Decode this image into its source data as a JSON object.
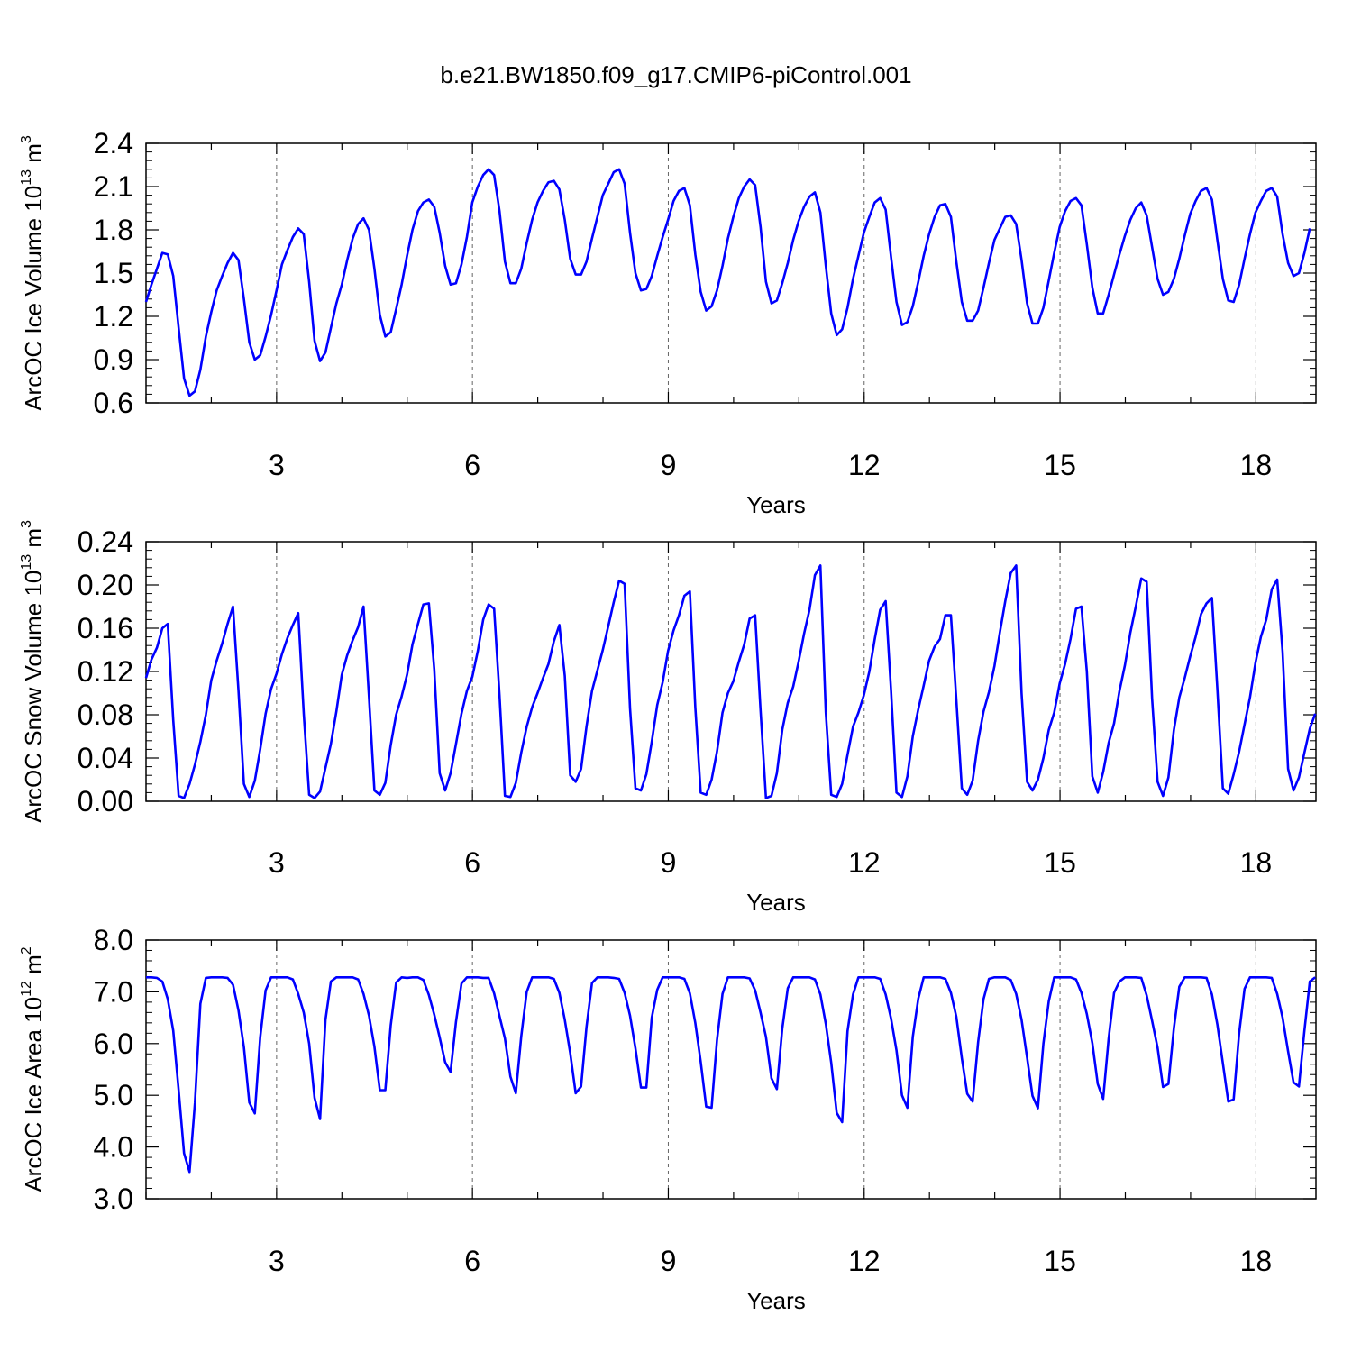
{
  "title": "b.e21.BW1850.f09_g17.CMIP6-piControl.001",
  "line_color": "#0000ff",
  "chart_data": [
    {
      "type": "line",
      "xlabel": "Years",
      "ylabel": {
        "pre": "ArcOC Ice Volume 10",
        "exp": "13",
        "mid": " m",
        "unit_exp": "3"
      },
      "xlim": [
        1.0,
        18.92
      ],
      "ylim": [
        0.6,
        2.4
      ],
      "xticks": [
        3,
        6,
        9,
        12,
        15,
        18
      ],
      "yticks": [
        "0.6",
        "0.9",
        "1.2",
        "1.5",
        "1.8",
        "2.1",
        "2.4"
      ],
      "series": [
        {
          "x_start": 1.0,
          "x_step": 0.0833,
          "values": [
            1.3,
            1.42,
            1.53,
            1.64,
            1.63,
            1.48,
            1.12,
            0.77,
            0.65,
            0.68,
            0.83,
            1.06,
            1.23,
            1.38,
            1.48,
            1.57,
            1.64,
            1.59,
            1.32,
            1.02,
            0.9,
            0.93,
            1.06,
            1.21,
            1.38,
            1.56,
            1.66,
            1.75,
            1.81,
            1.77,
            1.44,
            1.03,
            0.89,
            0.95,
            1.12,
            1.29,
            1.42,
            1.59,
            1.74,
            1.84,
            1.88,
            1.8,
            1.53,
            1.21,
            1.06,
            1.09,
            1.25,
            1.42,
            1.62,
            1.8,
            1.93,
            1.99,
            2.01,
            1.96,
            1.78,
            1.55,
            1.42,
            1.43,
            1.56,
            1.75,
            1.99,
            2.1,
            2.18,
            2.22,
            2.18,
            1.93,
            1.58,
            1.43,
            1.43,
            1.53,
            1.71,
            1.87,
            1.99,
            2.07,
            2.13,
            2.14,
            2.08,
            1.87,
            1.6,
            1.49,
            1.49,
            1.58,
            1.74,
            1.89,
            2.04,
            2.12,
            2.2,
            2.22,
            2.12,
            1.78,
            1.5,
            1.38,
            1.39,
            1.48,
            1.62,
            1.75,
            1.87,
            2.0,
            2.07,
            2.09,
            1.97,
            1.63,
            1.37,
            1.24,
            1.27,
            1.38,
            1.55,
            1.74,
            1.89,
            2.02,
            2.1,
            2.15,
            2.11,
            1.82,
            1.44,
            1.29,
            1.31,
            1.43,
            1.57,
            1.73,
            1.86,
            1.96,
            2.03,
            2.06,
            1.92,
            1.55,
            1.22,
            1.07,
            1.11,
            1.26,
            1.46,
            1.62,
            1.78,
            1.89,
            1.99,
            2.02,
            1.94,
            1.61,
            1.3,
            1.14,
            1.16,
            1.27,
            1.44,
            1.62,
            1.77,
            1.89,
            1.97,
            1.98,
            1.89,
            1.58,
            1.3,
            1.17,
            1.17,
            1.24,
            1.4,
            1.57,
            1.73,
            1.81,
            1.89,
            1.9,
            1.84,
            1.59,
            1.29,
            1.15,
            1.15,
            1.26,
            1.45,
            1.64,
            1.82,
            1.93,
            2.0,
            2.02,
            1.97,
            1.7,
            1.4,
            1.22,
            1.22,
            1.35,
            1.49,
            1.63,
            1.76,
            1.87,
            1.95,
            1.99,
            1.9,
            1.68,
            1.46,
            1.35,
            1.37,
            1.46,
            1.6,
            1.76,
            1.91,
            2.0,
            2.07,
            2.09,
            2.01,
            1.73,
            1.46,
            1.31,
            1.3,
            1.42,
            1.6,
            1.77,
            1.92,
            2.0,
            2.07,
            2.09,
            2.03,
            1.77,
            1.57,
            1.48,
            1.5,
            1.64,
            1.81
          ]
        }
      ]
    },
    {
      "type": "line",
      "xlabel": "Years",
      "ylabel": {
        "pre": "ArcOC Snow Volume 10",
        "exp": "13",
        "mid": " m",
        "unit_exp": "3"
      },
      "xlim": [
        1.0,
        18.92
      ],
      "ylim": [
        0.0,
        0.24
      ],
      "xticks": [
        3,
        6,
        9,
        12,
        15,
        18
      ],
      "yticks": [
        "0.00",
        "0.04",
        "0.08",
        "0.12",
        "0.16",
        "0.20",
        "0.24"
      ],
      "series": [
        {
          "x_start": 1.0,
          "x_step": 0.0833,
          "values": [
            0.114,
            0.131,
            0.142,
            0.16,
            0.164,
            0.075,
            0.005,
            0.003,
            0.016,
            0.034,
            0.055,
            0.08,
            0.112,
            0.13,
            0.146,
            0.164,
            0.18,
            0.102,
            0.016,
            0.004,
            0.019,
            0.048,
            0.081,
            0.104,
            0.118,
            0.136,
            0.151,
            0.163,
            0.174,
            0.081,
            0.006,
            0.003,
            0.009,
            0.031,
            0.053,
            0.083,
            0.117,
            0.135,
            0.149,
            0.161,
            0.18,
            0.096,
            0.01,
            0.006,
            0.017,
            0.052,
            0.08,
            0.097,
            0.117,
            0.145,
            0.164,
            0.182,
            0.183,
            0.122,
            0.026,
            0.01,
            0.026,
            0.053,
            0.081,
            0.102,
            0.115,
            0.139,
            0.168,
            0.182,
            0.178,
            0.098,
            0.005,
            0.004,
            0.017,
            0.045,
            0.069,
            0.087,
            0.1,
            0.114,
            0.127,
            0.148,
            0.163,
            0.116,
            0.024,
            0.018,
            0.03,
            0.069,
            0.102,
            0.121,
            0.14,
            0.162,
            0.184,
            0.204,
            0.201,
            0.086,
            0.012,
            0.01,
            0.025,
            0.055,
            0.089,
            0.11,
            0.139,
            0.158,
            0.172,
            0.19,
            0.194,
            0.087,
            0.008,
            0.006,
            0.02,
            0.046,
            0.082,
            0.1,
            0.111,
            0.129,
            0.145,
            0.169,
            0.172,
            0.084,
            0.003,
            0.005,
            0.026,
            0.066,
            0.091,
            0.106,
            0.129,
            0.155,
            0.177,
            0.209,
            0.218,
            0.082,
            0.006,
            0.004,
            0.016,
            0.043,
            0.069,
            0.082,
            0.098,
            0.12,
            0.15,
            0.177,
            0.185,
            0.102,
            0.008,
            0.004,
            0.023,
            0.06,
            0.085,
            0.107,
            0.13,
            0.143,
            0.15,
            0.172,
            0.172,
            0.094,
            0.012,
            0.006,
            0.019,
            0.056,
            0.083,
            0.101,
            0.125,
            0.156,
            0.185,
            0.211,
            0.218,
            0.1,
            0.018,
            0.01,
            0.02,
            0.04,
            0.066,
            0.082,
            0.109,
            0.127,
            0.15,
            0.178,
            0.18,
            0.12,
            0.023,
            0.008,
            0.027,
            0.054,
            0.072,
            0.102,
            0.126,
            0.156,
            0.18,
            0.206,
            0.203,
            0.095,
            0.018,
            0.005,
            0.022,
            0.066,
            0.096,
            0.114,
            0.134,
            0.152,
            0.173,
            0.183,
            0.188,
            0.104,
            0.012,
            0.007,
            0.025,
            0.046,
            0.071,
            0.096,
            0.128,
            0.152,
            0.168,
            0.196,
            0.205,
            0.138,
            0.03,
            0.01,
            0.022,
            0.045,
            0.067,
            0.081
          ]
        }
      ]
    },
    {
      "type": "line",
      "xlabel": "Years",
      "ylabel": {
        "pre": "ArcOC Ice Area 10",
        "exp": "12",
        "mid": " m",
        "unit_exp": "2"
      },
      "xlim": [
        1.0,
        18.92
      ],
      "ylim": [
        3.0,
        8.0
      ],
      "xticks": [
        3,
        6,
        9,
        12,
        15,
        18
      ],
      "yticks": [
        "3.0",
        "4.0",
        "5.0",
        "6.0",
        "7.0",
        "8.0"
      ],
      "series": [
        {
          "x_start": 1.0,
          "x_step": 0.0833,
          "values": [
            7.28,
            7.28,
            7.27,
            7.2,
            6.86,
            6.25,
            5.1,
            3.88,
            3.52,
            4.86,
            6.77,
            7.27,
            7.28,
            7.28,
            7.28,
            7.27,
            7.14,
            6.64,
            5.93,
            4.86,
            4.65,
            6.12,
            7.03,
            7.28,
            7.28,
            7.28,
            7.28,
            7.24,
            6.96,
            6.6,
            6.0,
            4.95,
            4.54,
            6.46,
            7.2,
            7.28,
            7.28,
            7.28,
            7.28,
            7.24,
            6.96,
            6.54,
            5.94,
            5.1,
            5.1,
            6.35,
            7.18,
            7.28,
            7.27,
            7.28,
            7.28,
            7.23,
            6.94,
            6.56,
            6.12,
            5.64,
            5.45,
            6.42,
            7.16,
            7.28,
            7.28,
            7.28,
            7.27,
            7.27,
            6.97,
            6.53,
            6.1,
            5.36,
            5.04,
            6.14,
            7.0,
            7.28,
            7.28,
            7.28,
            7.28,
            7.25,
            6.98,
            6.46,
            5.82,
            5.04,
            5.17,
            6.32,
            7.17,
            7.28,
            7.28,
            7.28,
            7.27,
            7.25,
            6.98,
            6.54,
            5.91,
            5.15,
            5.15,
            6.5,
            7.04,
            7.28,
            7.28,
            7.28,
            7.28,
            7.25,
            6.97,
            6.4,
            5.65,
            4.78,
            4.76,
            6.07,
            6.96,
            7.28,
            7.28,
            7.28,
            7.28,
            7.26,
            7.03,
            6.6,
            6.13,
            5.33,
            5.12,
            6.29,
            7.07,
            7.28,
            7.28,
            7.28,
            7.28,
            7.24,
            6.95,
            6.38,
            5.63,
            4.66,
            4.48,
            6.24,
            6.95,
            7.28,
            7.28,
            7.28,
            7.28,
            7.25,
            6.95,
            6.48,
            5.87,
            5.0,
            4.76,
            6.13,
            6.87,
            7.28,
            7.28,
            7.28,
            7.28,
            7.25,
            6.98,
            6.52,
            5.72,
            5.03,
            4.88,
            6.03,
            6.86,
            7.25,
            7.28,
            7.28,
            7.28,
            7.23,
            6.96,
            6.46,
            5.73,
            4.99,
            4.75,
            6.0,
            6.82,
            7.28,
            7.28,
            7.28,
            7.28,
            7.24,
            6.98,
            6.57,
            6.01,
            5.22,
            4.93,
            6.1,
            6.98,
            7.2,
            7.28,
            7.28,
            7.28,
            7.27,
            6.93,
            6.44,
            5.92,
            5.16,
            5.22,
            6.3,
            7.1,
            7.28,
            7.28,
            7.28,
            7.28,
            7.27,
            6.95,
            6.37,
            5.62,
            4.88,
            4.92,
            6.2,
            7.06,
            7.28,
            7.28,
            7.28,
            7.28,
            7.27,
            6.96,
            6.5,
            5.85,
            5.25,
            5.17,
            6.25,
            7.2,
            7.28
          ]
        }
      ]
    }
  ]
}
